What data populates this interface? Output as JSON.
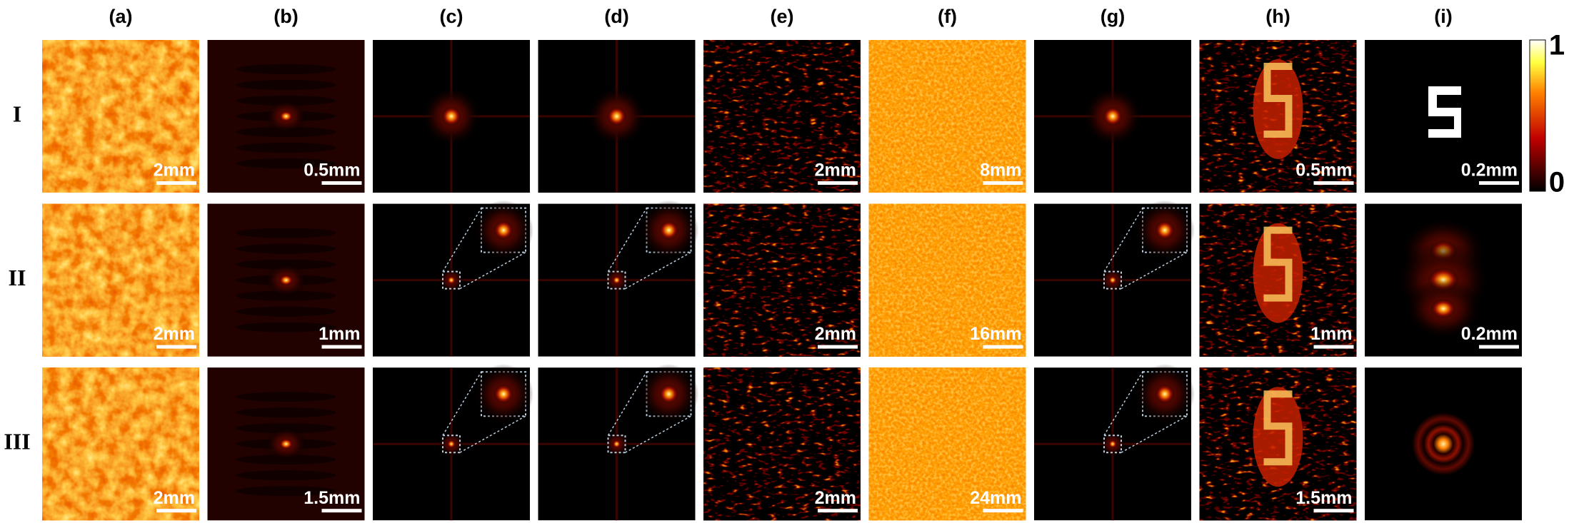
{
  "columns": [
    "(a)",
    "(b)",
    "(c)",
    "(d)",
    "(e)",
    "(f)",
    "(g)",
    "(h)",
    "(i)"
  ],
  "rows": [
    {
      "label": "I",
      "scalebars": {
        "a": "2mm",
        "b": "0.5mm",
        "e": "2mm",
        "f": "8mm",
        "h": "0.5mm",
        "i": "0.2mm"
      }
    },
    {
      "label": "II",
      "scalebars": {
        "a": "2mm",
        "b": "1mm",
        "e": "2mm",
        "f": "16mm",
        "h": "1mm",
        "i": "0.2mm"
      }
    },
    {
      "label": "III",
      "scalebars": {
        "a": "2mm",
        "b": "1.5mm",
        "e": "2mm",
        "f": "24mm",
        "h": "1.5mm"
      }
    }
  ],
  "colorbar": {
    "max": "1",
    "min": "0"
  }
}
